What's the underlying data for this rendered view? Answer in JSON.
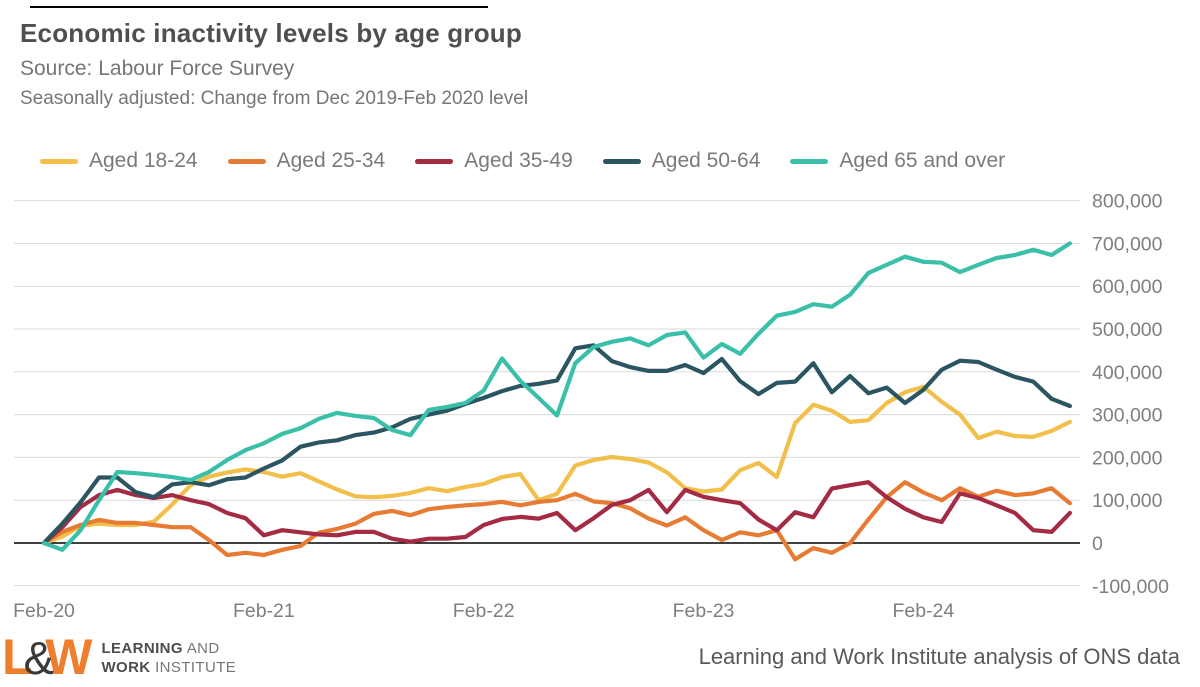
{
  "header": {
    "title": "Economic inactivity levels by age group",
    "source": "Source: Labour Force Survey",
    "note": "Seasonally adjusted: Change from Dec 2019-Feb 2020 level"
  },
  "footer": {
    "logo_l": "L",
    "logo_amp": "&",
    "logo_w": "W",
    "logo_line1_bold": "LEARNING",
    "logo_line1_rest": " AND",
    "logo_line2_bold": "WORK",
    "logo_line2_rest": " INSTITUTE",
    "credit": "Learning and Work Institute analysis of ONS data"
  },
  "colors": {
    "title_text": "#4f4f4f",
    "subtitle_text": "#767676",
    "axis_text": "#7f7f7f",
    "gridline": "#d9d9d9",
    "zero_line": "#000000",
    "logo_orange": "#ef7d2e"
  },
  "chart_data": {
    "type": "line",
    "title": "Economic inactivity levels by age group",
    "xlabel": "",
    "ylabel": "",
    "ylim": [
      -100000,
      800000
    ],
    "grid": "horizontal",
    "legend_position": "top",
    "y_ticks": [
      800000,
      700000,
      600000,
      500000,
      400000,
      300000,
      200000,
      100000,
      0,
      -100000
    ],
    "x_tick_labels": [
      "Feb-20",
      "Feb-21",
      "Feb-22",
      "Feb-23",
      "Feb-24"
    ],
    "x_tick_indices": [
      0,
      12,
      24,
      36,
      48
    ],
    "x": [
      "Feb-20",
      "Mar-20",
      "Apr-20",
      "May-20",
      "Jun-20",
      "Jul-20",
      "Aug-20",
      "Sep-20",
      "Oct-20",
      "Nov-20",
      "Dec-20",
      "Jan-21",
      "Feb-21",
      "Mar-21",
      "Apr-21",
      "May-21",
      "Jun-21",
      "Jul-21",
      "Aug-21",
      "Sep-21",
      "Oct-21",
      "Nov-21",
      "Dec-21",
      "Jan-22",
      "Feb-22",
      "Mar-22",
      "Apr-22",
      "May-22",
      "Jun-22",
      "Jul-22",
      "Aug-22",
      "Sep-22",
      "Oct-22",
      "Nov-22",
      "Dec-22",
      "Jan-23",
      "Feb-23",
      "Mar-23",
      "Apr-23",
      "May-23",
      "Jun-23",
      "Jul-23",
      "Aug-23",
      "Sep-23",
      "Oct-23",
      "Nov-23",
      "Dec-23",
      "Jan-24",
      "Feb-24",
      "Mar-24",
      "Apr-24",
      "May-24",
      "Jun-24",
      "Jul-24",
      "Aug-24",
      "Sep-24",
      "Oct-24"
    ],
    "series": [
      {
        "name": "Aged 18-24",
        "color": "#f2bf4b",
        "values": [
          0,
          15000,
          40000,
          45000,
          42000,
          42000,
          50000,
          90000,
          135000,
          155000,
          165000,
          172000,
          166000,
          155000,
          163000,
          144000,
          125000,
          109000,
          107000,
          110000,
          117000,
          128000,
          121000,
          131000,
          138000,
          154000,
          161000,
          100000,
          115000,
          181000,
          194000,
          201000,
          196000,
          188000,
          165000,
          128000,
          120000,
          125000,
          170000,
          187000,
          154000,
          280000,
          323000,
          309000,
          283000,
          287000,
          327000,
          352000,
          365000,
          330000,
          300000,
          245000,
          260000,
          250000,
          248000,
          262000,
          283000
        ]
      },
      {
        "name": "Aged 25-34",
        "color": "#e87b33",
        "values": [
          0,
          26000,
          42000,
          54000,
          47000,
          47000,
          42000,
          37000,
          37000,
          7000,
          -28000,
          -23000,
          -28000,
          -16000,
          -7000,
          24000,
          33000,
          45000,
          68000,
          75000,
          65000,
          79000,
          84000,
          88000,
          91000,
          96000,
          88000,
          96000,
          100000,
          115000,
          97000,
          93000,
          81000,
          57000,
          41000,
          60000,
          30000,
          7000,
          25000,
          18000,
          30000,
          -38000,
          -12000,
          -23000,
          0,
          55000,
          107000,
          142000,
          118000,
          100000,
          128000,
          108000,
          122000,
          112000,
          116000,
          128000,
          93000
        ]
      },
      {
        "name": "Aged 35-49",
        "color": "#a32b44",
        "values": [
          0,
          37000,
          84000,
          112000,
          124000,
          112000,
          105000,
          112000,
          100000,
          91000,
          70000,
          58000,
          18000,
          30000,
          25000,
          20000,
          18000,
          26000,
          26000,
          10000,
          3000,
          10000,
          10000,
          14000,
          42000,
          56000,
          61000,
          57000,
          70000,
          30000,
          58000,
          89000,
          100000,
          124000,
          72000,
          124000,
          108000,
          100000,
          93000,
          55000,
          30000,
          72000,
          60000,
          127000,
          135000,
          142000,
          107000,
          80000,
          60000,
          49000,
          116000,
          105000,
          88000,
          70000,
          30000,
          26000,
          70000
        ]
      },
      {
        "name": "Aged 50-64",
        "color": "#2b5560",
        "values": [
          0,
          45000,
          95000,
          153000,
          153000,
          119000,
          107000,
          137000,
          142000,
          135000,
          149000,
          153000,
          174000,
          193000,
          225000,
          235000,
          240000,
          252000,
          258000,
          270000,
          290000,
          300000,
          309000,
          325000,
          339000,
          355000,
          367000,
          372000,
          380000,
          455000,
          462000,
          425000,
          411000,
          402000,
          402000,
          416000,
          397000,
          430000,
          378000,
          348000,
          374000,
          377000,
          420000,
          352000,
          390000,
          350000,
          363000,
          327000,
          358000,
          405000,
          426000,
          423000,
          405000,
          388000,
          377000,
          337000,
          320000
        ]
      },
      {
        "name": "Aged 65 and over",
        "color": "#3abfa9",
        "values": [
          0,
          -16000,
          30000,
          100000,
          166000,
          163000,
          159000,
          154000,
          147000,
          166000,
          194000,
          217000,
          233000,
          255000,
          268000,
          290000,
          304000,
          297000,
          292000,
          264000,
          252000,
          311000,
          318000,
          327000,
          356000,
          431000,
          379000,
          339000,
          298000,
          420000,
          458000,
          470000,
          478000,
          462000,
          486000,
          492000,
          433000,
          465000,
          442000,
          489000,
          531000,
          540000,
          558000,
          552000,
          580000,
          631000,
          650000,
          669000,
          657000,
          655000,
          633000,
          650000,
          666000,
          673000,
          685000,
          673000,
          700000
        ]
      }
    ]
  }
}
